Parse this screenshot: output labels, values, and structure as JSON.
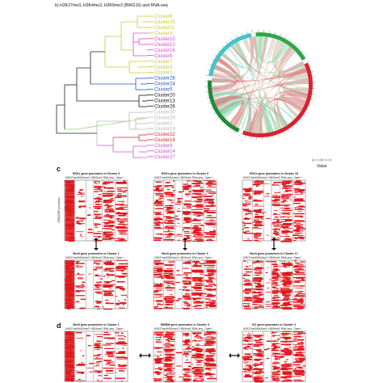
{
  "header_text": "b) H3K27me3, H3K4me3, H3K9me3 (BWG16) and RNA-seq",
  "panels": {
    "c": "c",
    "d": "d"
  },
  "dendrogram": {
    "clusters": [
      {
        "label": "Cluster9",
        "color": "#c9c83a"
      },
      {
        "label": "Cluster25",
        "color": "#c9c83a"
      },
      {
        "label": "Cluster11",
        "color": "#c9c83a"
      },
      {
        "label": "Cluster3",
        "color": "#c9c83a"
      },
      {
        "label": "Cluster15",
        "color": "#d944d0"
      },
      {
        "label": "Cluster10",
        "color": "#d944d0"
      },
      {
        "label": "Cluster16",
        "color": "#d944d0"
      },
      {
        "label": "Cluster8",
        "color": "#d944d0"
      },
      {
        "label": "Cluster7",
        "color": "#c9c83a"
      },
      {
        "label": "Cluster4",
        "color": "#c9c83a"
      },
      {
        "label": "Cluster1",
        "color": "#c9c83a"
      },
      {
        "label": "Cluster28",
        "color": "#2355c9"
      },
      {
        "label": "Cluster24",
        "color": "#2355c9"
      },
      {
        "label": "Cluster5",
        "color": "#2355c9"
      },
      {
        "label": "Cluster20",
        "color": "#111111"
      },
      {
        "label": "Cluster13",
        "color": "#111111"
      },
      {
        "label": "Cluster26",
        "color": "#111111"
      },
      {
        "label": "Cluster30",
        "color": "#b8b8b8"
      },
      {
        "label": "Cluster29",
        "color": "#b8b8b8"
      },
      {
        "label": "Cluster2",
        "color": "#b8b8b8"
      },
      {
        "label": "Cluster19",
        "color": "#b8b8b8"
      },
      {
        "label": "Cluster22",
        "color": "#d9232f"
      },
      {
        "label": "Cluster18",
        "color": "#d9232f"
      },
      {
        "label": "Cluster6",
        "color": "#c955d0"
      },
      {
        "label": "Cluster14",
        "color": "#c955d0"
      },
      {
        "label": "Cluster27",
        "color": "#c955d0"
      }
    ]
  },
  "chord": {
    "segments": [
      {
        "start": -80,
        "end": -10,
        "color": "#3fc6c8"
      },
      {
        "start": -5,
        "end": 60,
        "color": "#2ea84a"
      },
      {
        "start": 65,
        "end": 200,
        "color": "#d9232f"
      },
      {
        "start": 205,
        "end": 275,
        "color": "#1f8a3a"
      }
    ],
    "ribbon_colors": [
      "#7fe0b8",
      "#e4a3a0",
      "#c7c1a5",
      "#d97a7a",
      "#9ed9b0"
    ]
  },
  "legend": {
    "value_label": "Value"
  },
  "panel_c": {
    "top_titles": [
      "ESCs  gene promoters in Cluster 3",
      "ESCs  gene promoters in Cluster 5",
      "ESCs  gene promoters in Cluster 19"
    ],
    "bottom_titles": [
      "Bcell  gene promoters in Cluster 1",
      "Bcell  gene promoters in Cluster 3",
      "Bcell  gene promoters in Cluster 17"
    ],
    "col_labels": [
      "H3K27me3",
      "H3K4me3",
      "H3K9me3",
      "RNA-seq",
      "Open+"
    ],
    "side_label": "GENCODE promoters"
  },
  "panel_d": {
    "titles": [
      "Bcell  gene promoters in Cluster 1",
      "BMDM  gene promoters in Cluster 3",
      "DC  gene promoters in Cluster 2"
    ],
    "col_labels": [
      "H3K27me3",
      "H3K4me3",
      "H3K9me3",
      "RNA-seq",
      "Open+"
    ]
  }
}
